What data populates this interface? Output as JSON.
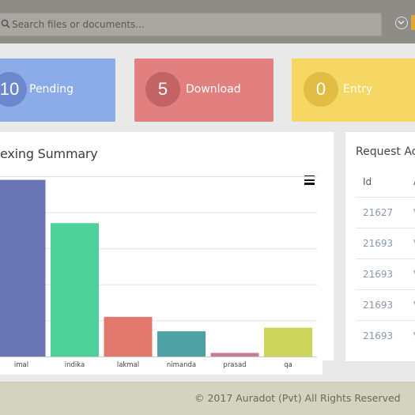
{
  "search": {
    "placeholder": "Search files or documents..."
  },
  "cards": {
    "pending": {
      "count": "10",
      "label": "Pending"
    },
    "download": {
      "count": "5",
      "label": "Download"
    },
    "entry": {
      "count": "0",
      "label": "Entry"
    }
  },
  "chart_panel": {
    "title": "exing Summary"
  },
  "chart_data": {
    "type": "bar",
    "title": "exing Summary",
    "categories": [
      "imal",
      "indika",
      "lakmal",
      "nimanda",
      "prasad",
      "qa"
    ],
    "values": [
      49,
      37,
      11,
      7,
      1,
      8
    ],
    "colors": [
      "#6874b4",
      "#4ed09a",
      "#e2776c",
      "#4ea1a4",
      "#c77c95",
      "#cdd55a"
    ],
    "ylim": [
      0,
      50
    ],
    "grid": true
  },
  "request_table": {
    "title": "Request Acc",
    "headers": [
      "Id",
      "A"
    ],
    "rows": [
      {
        "id": "21627",
        "col2": "V"
      },
      {
        "id": "21693",
        "col2": "V"
      },
      {
        "id": "21693",
        "col2": "V"
      },
      {
        "id": "21693",
        "col2": "V"
      },
      {
        "id": "21693",
        "col2": "V"
      }
    ]
  },
  "footer": {
    "text": "© 2017 Auradot (Pvt) All Rights Reserved"
  }
}
